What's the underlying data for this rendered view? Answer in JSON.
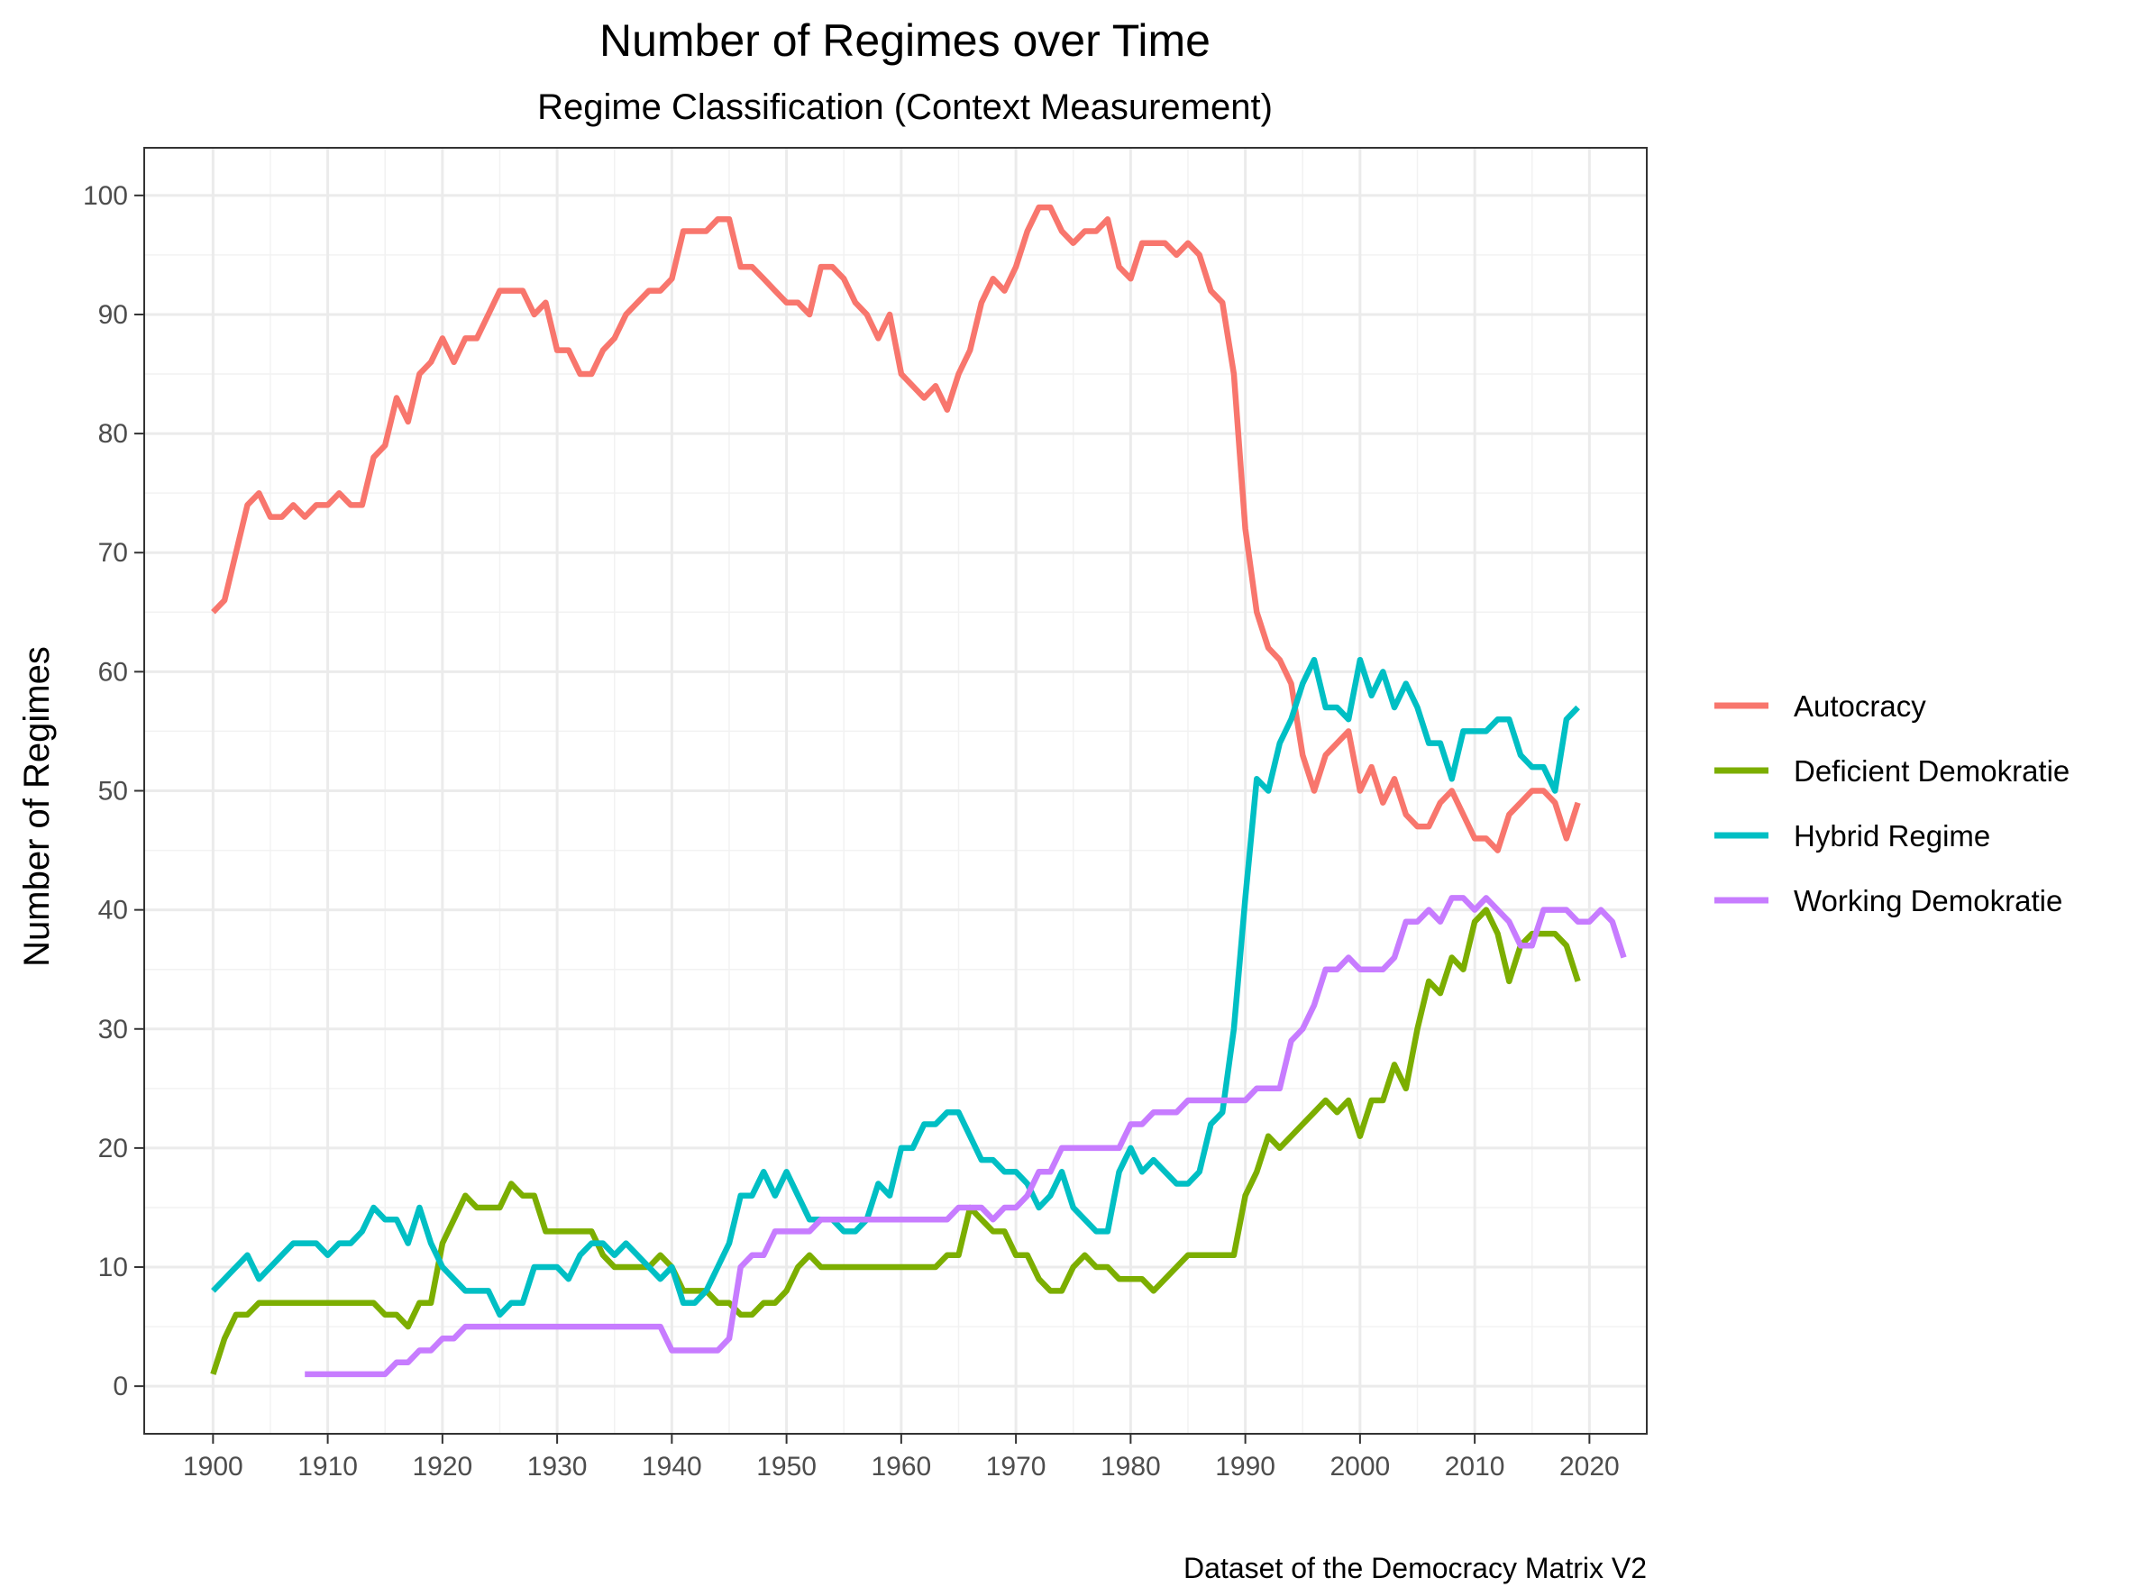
{
  "chart_data": {
    "type": "line",
    "title": "Number of Regimes over Time",
    "subtitle": "Regime Classification (Context Measurement)",
    "xlabel": "",
    "ylabel": "Number of Regimes",
    "caption": "Dataset of the Democracy Matrix V2",
    "xlim": [
      1894,
      2025
    ],
    "ylim": [
      -4,
      104
    ],
    "xticks": [
      "1900",
      "1910",
      "1920",
      "1930",
      "1940",
      "1950",
      "1960",
      "1970",
      "1980",
      "1990",
      "2000",
      "2010",
      "2020"
    ],
    "yticks": [
      "0",
      "10",
      "20",
      "30",
      "40",
      "50",
      "60",
      "70",
      "80",
      "90",
      "100"
    ],
    "grid": true,
    "legend_position": "right",
    "series": [
      {
        "name": "Autocracy",
        "color": "#F8766D",
        "start_year": 1900,
        "values": [
          65,
          66,
          70,
          74,
          75,
          73,
          73,
          74,
          73,
          74,
          74,
          75,
          74,
          74,
          78,
          79,
          83,
          81,
          85,
          86,
          88,
          86,
          88,
          88,
          90,
          92,
          92,
          92,
          90,
          91,
          87,
          87,
          85,
          85,
          87,
          88,
          90,
          91,
          92,
          92,
          93,
          97,
          97,
          97,
          98,
          98,
          94,
          94,
          93,
          92,
          91,
          91,
          90,
          94,
          94,
          93,
          91,
          90,
          88,
          90,
          85,
          84,
          83,
          84,
          82,
          85,
          87,
          91,
          93,
          92,
          94,
          97,
          99,
          99,
          97,
          96,
          97,
          97,
          98,
          94,
          93,
          96,
          96,
          96,
          95,
          96,
          95,
          92,
          91,
          85,
          72,
          65,
          62,
          61,
          59,
          53,
          50,
          53,
          54,
          55,
          50,
          52,
          49,
          51,
          48,
          47,
          47,
          49,
          50,
          48,
          46,
          46,
          45,
          48,
          49,
          50,
          50,
          49,
          46,
          49
        ]
      },
      {
        "name": "Deficient Demokratie",
        "color": "#7CAE00",
        "start_year": 1900,
        "values": [
          1,
          4,
          6,
          6,
          7,
          7,
          7,
          7,
          7,
          7,
          7,
          7,
          7,
          7,
          7,
          6,
          6,
          5,
          7,
          7,
          12,
          14,
          16,
          15,
          15,
          15,
          17,
          16,
          16,
          13,
          13,
          13,
          13,
          13,
          11,
          10,
          10,
          10,
          10,
          11,
          10,
          8,
          8,
          8,
          7,
          7,
          6,
          6,
          7,
          7,
          8,
          10,
          11,
          10,
          10,
          10,
          10,
          10,
          10,
          10,
          10,
          10,
          10,
          10,
          11,
          11,
          15,
          14,
          13,
          13,
          11,
          11,
          9,
          8,
          8,
          10,
          11,
          10,
          10,
          9,
          9,
          9,
          8,
          9,
          10,
          11,
          11,
          11,
          11,
          11,
          16,
          18,
          21,
          20,
          21,
          22,
          23,
          24,
          23,
          24,
          21,
          24,
          24,
          27,
          25,
          30,
          34,
          33,
          36,
          35,
          39,
          40,
          38,
          34,
          37,
          38,
          38,
          38,
          37,
          34
        ]
      },
      {
        "name": "Hybrid Regime",
        "color": "#00BFC4",
        "start_year": 1900,
        "values": [
          8,
          9,
          10,
          11,
          9,
          10,
          11,
          12,
          12,
          12,
          11,
          12,
          12,
          13,
          15,
          14,
          14,
          12,
          15,
          12,
          10,
          9,
          8,
          8,
          8,
          6,
          7,
          7,
          10,
          10,
          10,
          9,
          11,
          12,
          12,
          11,
          12,
          11,
          10,
          9,
          10,
          7,
          7,
          8,
          10,
          12,
          16,
          16,
          18,
          16,
          18,
          16,
          14,
          14,
          14,
          13,
          13,
          14,
          17,
          16,
          20,
          20,
          22,
          22,
          23,
          23,
          21,
          19,
          19,
          18,
          18,
          17,
          15,
          16,
          18,
          15,
          14,
          13,
          13,
          18,
          20,
          18,
          19,
          18,
          17,
          17,
          18,
          22,
          23,
          30,
          41,
          51,
          50,
          54,
          56,
          59,
          61,
          57,
          57,
          56,
          61,
          58,
          60,
          57,
          59,
          57,
          54,
          54,
          51,
          55,
          55,
          55,
          56,
          56,
          53,
          52,
          52,
          50,
          56,
          57
        ]
      },
      {
        "name": "Working Demokratie",
        "color": "#C77CFF",
        "start_year": 1908,
        "values": [
          1,
          1,
          1,
          1,
          1,
          1,
          1,
          1,
          2,
          2,
          3,
          3,
          4,
          4,
          5,
          5,
          5,
          5,
          5,
          5,
          5,
          5,
          5,
          5,
          5,
          5,
          5,
          5,
          5,
          5,
          5,
          5,
          3,
          3,
          3,
          3,
          3,
          4,
          10,
          11,
          11,
          13,
          13,
          13,
          13,
          14,
          14,
          14,
          14,
          14,
          14,
          14,
          14,
          14,
          14,
          14,
          14,
          15,
          15,
          15,
          14,
          15,
          15,
          16,
          18,
          18,
          20,
          20,
          20,
          20,
          20,
          20,
          22,
          22,
          23,
          23,
          23,
          24,
          24,
          24,
          24,
          24,
          24,
          25,
          25,
          25,
          29,
          30,
          32,
          35,
          35,
          36,
          35,
          35,
          35,
          36,
          39,
          39,
          40,
          39,
          41,
          41,
          40,
          41,
          40,
          39,
          37,
          37,
          40,
          40,
          40,
          39,
          39,
          40,
          39,
          36
        ]
      }
    ]
  }
}
